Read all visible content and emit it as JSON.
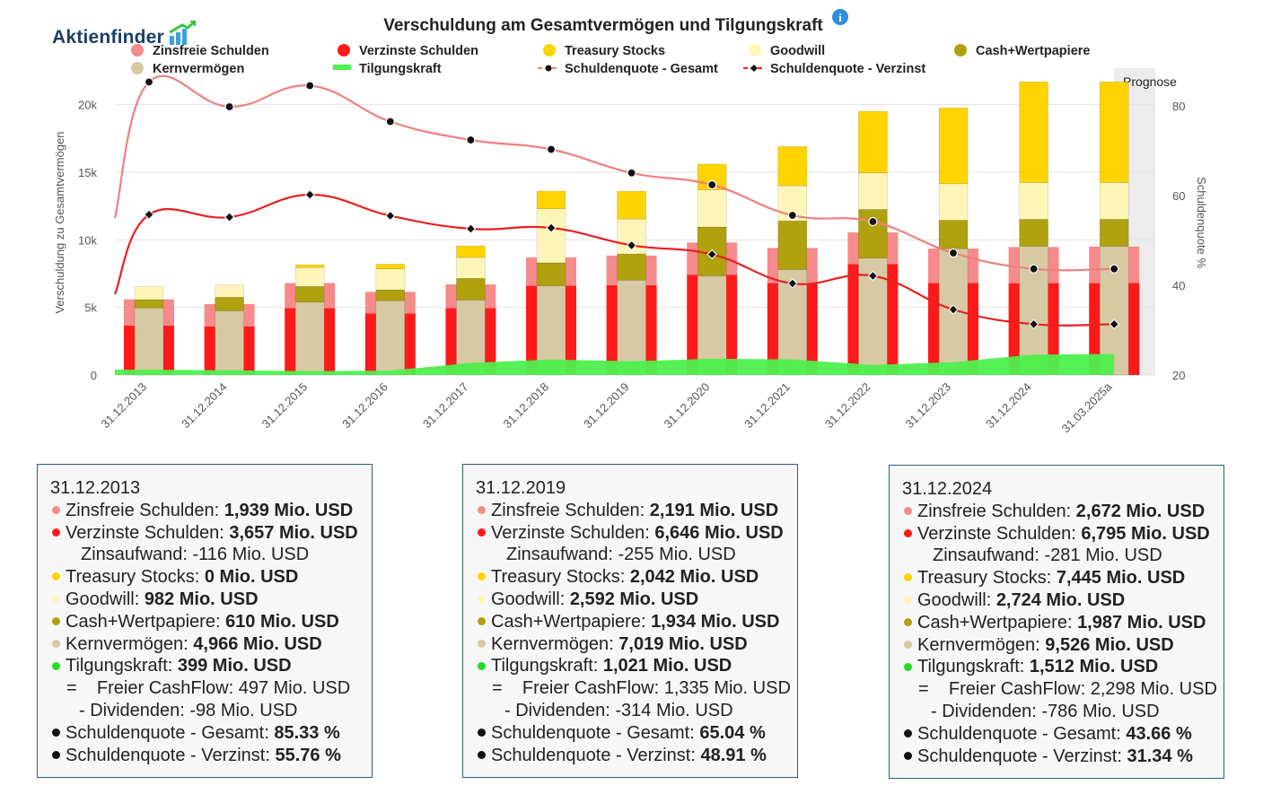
{
  "logo": {
    "text": "Aktienfinder"
  },
  "chart_data": {
    "type": "bar",
    "title": "Verschuldung am Gesamtvermögen und Tilgungskraft",
    "info_icon": "info-icon",
    "ylabel_left": "Verschuldung zu Gesamtvermögen",
    "ylabel_right": "Schuldenquote %",
    "ylim_left": [
      0,
      22000
    ],
    "ylim_right": [
      20,
      86
    ],
    "yticks_left": [
      {
        "value": 0,
        "label": "0"
      },
      {
        "value": 5000,
        "label": "5k"
      },
      {
        "value": 10000,
        "label": "10k"
      },
      {
        "value": 15000,
        "label": "15k"
      },
      {
        "value": 20000,
        "label": "20k"
      }
    ],
    "yticks_right": [
      {
        "value": 20,
        "label": "20"
      },
      {
        "value": 40,
        "label": "40"
      },
      {
        "value": 60,
        "label": "60"
      },
      {
        "value": 80,
        "label": "80"
      }
    ],
    "categories": [
      "31.12.2013",
      "31.12.2014",
      "31.12.2015",
      "31.12.2016",
      "31.12.2017",
      "31.12.2018",
      "31.12.2019",
      "31.12.2020",
      "31.12.2021",
      "31.12.2022",
      "31.12.2023",
      "31.12.2024",
      "31.03.2025a"
    ],
    "forecast_label": "Prognose",
    "grid": true,
    "legend_position": "top",
    "legend": [
      {
        "name": "Zinsfreie Schulden",
        "color": "#f78a8a",
        "marker": "dot"
      },
      {
        "name": "Verzinste Schulden",
        "color": "#ff1a1a",
        "marker": "dot"
      },
      {
        "name": "Treasury Stocks",
        "color": "#ffd400",
        "marker": "dot"
      },
      {
        "name": "Goodwill",
        "color": "#fdf6b8",
        "marker": "dot"
      },
      {
        "name": "Cash+Wertpapiere",
        "color": "#b0a10f",
        "marker": "dot"
      },
      {
        "name": "Kernvermögen",
        "color": "#d6c9a3",
        "marker": "dot"
      },
      {
        "name": "Tilgungskraft",
        "color": "#4df04d",
        "marker": "bar"
      },
      {
        "name": "Schuldenquote - Gesamt",
        "color": "#f08080",
        "marker": "line-dot"
      },
      {
        "name": "Schuldenquote - Verzinst",
        "color": "#e82020",
        "marker": "line-diamond"
      }
    ],
    "liabilities": {
      "zinsfreie_schulden": [
        1939,
        1650,
        1850,
        1600,
        1750,
        2100,
        2191,
        2400,
        2600,
        2350,
        2550,
        2672,
        2700
      ],
      "verzinste_schulden": [
        3657,
        3600,
        4950,
        4550,
        4950,
        6600,
        6646,
        7400,
        6800,
        8200,
        6800,
        6795,
        6800
      ]
    },
    "assets": {
      "kernvermoegen": [
        4966,
        4750,
        5400,
        5500,
        5550,
        6600,
        7019,
        7350,
        7800,
        8650,
        9350,
        9526,
        9526
      ],
      "cash_wertpapiere": [
        610,
        1000,
        1150,
        800,
        1600,
        1700,
        1934,
        3600,
        3600,
        3600,
        2100,
        1987,
        1987
      ],
      "goodwill": [
        982,
        900,
        1400,
        1550,
        1550,
        4000,
        2592,
        2750,
        2600,
        2700,
        2700,
        2724,
        2724
      ],
      "treasury_stocks": [
        0,
        0,
        200,
        350,
        850,
        1300,
        2042,
        1900,
        2900,
        4550,
        5600,
        7445,
        7445
      ]
    },
    "tilgungskraft": [
      399,
      350,
      280,
      320,
      900,
      1150,
      1021,
      1200,
      1150,
      750,
      950,
      1512,
      1550
    ],
    "schuldenquote_gesamt": [
      85.33,
      79.8,
      84.5,
      76.5,
      72.4,
      70.3,
      65.04,
      62.4,
      55.6,
      54.2,
      47.2,
      43.66,
      43.66
    ],
    "schuldenquote_verzinst": [
      55.76,
      55.2,
      60.2,
      55.5,
      52.6,
      52.8,
      48.91,
      46.9,
      40.4,
      42.1,
      34.6,
      31.34,
      31.34
    ]
  },
  "tooltips": [
    {
      "date": "31.12.2013",
      "zinsfreie": {
        "label": "Zinsfreie Schulden: ",
        "value": "1,939 Mio. USD"
      },
      "verzinste": {
        "label": "Verzinste Schulden: ",
        "value": "3,657 Mio. USD"
      },
      "zinsaufwand": "Zinsaufwand: -116 Mio. USD",
      "treasury": {
        "label": "Treasury Stocks: ",
        "value": "0 Mio. USD"
      },
      "goodwill": {
        "label": "Goodwill: ",
        "value": "982 Mio. USD"
      },
      "cash": {
        "label": "Cash+Wertpapiere: ",
        "value": "610 Mio. USD"
      },
      "kern": {
        "label": "Kernvermögen: ",
        "value": "4,966 Mio. USD"
      },
      "tilgung": {
        "label": "Tilgungskraft: ",
        "value": "399 Mio. USD"
      },
      "fcf": "=    Freier CashFlow: 497 Mio. USD",
      "div": "- Dividenden: -98 Mio. USD",
      "sq_ges": {
        "label": "Schuldenquote - Gesamt: ",
        "value": "85.33 %"
      },
      "sq_verz": {
        "label": "Schuldenquote - Verzinst: ",
        "value": "55.76 %"
      }
    },
    {
      "date": "31.12.2019",
      "zinsfreie": {
        "label": "Zinsfreie Schulden: ",
        "value": "2,191 Mio. USD"
      },
      "verzinste": {
        "label": "Verzinste Schulden: ",
        "value": "6,646 Mio. USD"
      },
      "zinsaufwand": "Zinsaufwand: -255 Mio. USD",
      "treasury": {
        "label": "Treasury Stocks: ",
        "value": "2,042 Mio. USD"
      },
      "goodwill": {
        "label": "Goodwill: ",
        "value": "2,592 Mio. USD"
      },
      "cash": {
        "label": "Cash+Wertpapiere: ",
        "value": "1,934 Mio. USD"
      },
      "kern": {
        "label": "Kernvermögen: ",
        "value": "7,019 Mio. USD"
      },
      "tilgung": {
        "label": "Tilgungskraft: ",
        "value": "1,021 Mio. USD"
      },
      "fcf": "=    Freier CashFlow: 1,335 Mio. USD",
      "div": "- Dividenden: -314 Mio. USD",
      "sq_ges": {
        "label": "Schuldenquote - Gesamt: ",
        "value": "65.04 %"
      },
      "sq_verz": {
        "label": "Schuldenquote - Verzinst: ",
        "value": "48.91 %"
      }
    },
    {
      "date": "31.12.2024",
      "zinsfreie": {
        "label": "Zinsfreie Schulden: ",
        "value": "2,672 Mio. USD"
      },
      "verzinste": {
        "label": "Verzinste Schulden: ",
        "value": "6,795 Mio. USD"
      },
      "zinsaufwand": "Zinsaufwand: -281 Mio. USD",
      "treasury": {
        "label": "Treasury Stocks: ",
        "value": "7,445 Mio. USD"
      },
      "goodwill": {
        "label": "Goodwill: ",
        "value": "2,724 Mio. USD"
      },
      "cash": {
        "label": "Cash+Wertpapiere: ",
        "value": "1,987 Mio. USD"
      },
      "kern": {
        "label": "Kernvermögen: ",
        "value": "9,526 Mio. USD"
      },
      "tilgung": {
        "label": "Tilgungskraft: ",
        "value": "1,512 Mio. USD"
      },
      "fcf": "=    Freier CashFlow: 2,298 Mio. USD",
      "div": "- Dividenden: -786 Mio. USD",
      "sq_ges": {
        "label": "Schuldenquote - Gesamt: ",
        "value": "43.66 %"
      },
      "sq_verz": {
        "label": "Schuldenquote - Verzinst: ",
        "value": "31.34 %"
      }
    }
  ]
}
